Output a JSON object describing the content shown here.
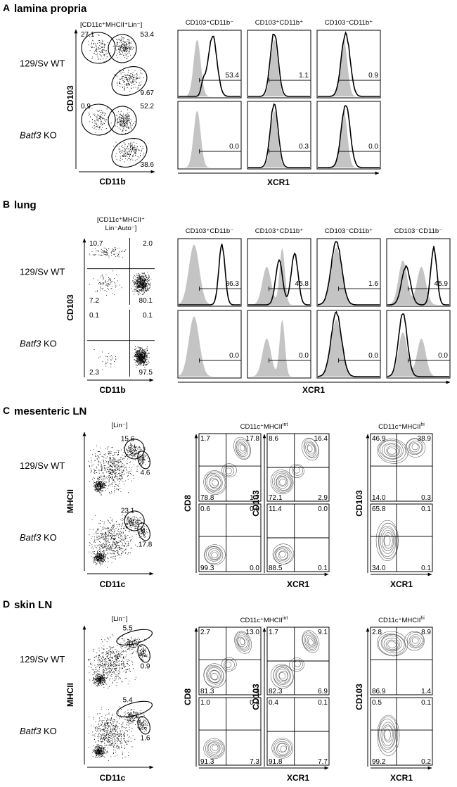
{
  "figure": {
    "panels": [
      {
        "letter": "A",
        "title": "lamina propria",
        "type": "histogram_grid",
        "gate_label": "[CD11c⁺MHCII⁺Lin⁻]",
        "dot_xlabel": "CD11b",
        "dot_ylabel": "CD103",
        "hist_xlabel": "XCR1",
        "rows": [
          "129/Sv WT",
          "Batf3 KO"
        ],
        "columns": [
          "CD103⁺CD11b⁻",
          "CD103⁺CD11b⁺",
          "CD103⁻CD11b⁺"
        ],
        "dot_values": [
          [
            "27.1",
            "53.4",
            "9.67"
          ],
          [
            "0.9",
            "52.2",
            "38.6"
          ]
        ],
        "hist_values": [
          [
            "53.4",
            "1.1",
            "0.9"
          ],
          [
            "0.0",
            "0.3",
            "0.0"
          ]
        ]
      },
      {
        "letter": "B",
        "title": "lung",
        "type": "histogram_grid",
        "gate_label": [
          "[CD11c⁺MHCII⁺",
          "Lin⁻Auto⁻]"
        ],
        "dot_xlabel": "CD11b",
        "dot_ylabel": "CD103",
        "hist_xlabel": "XCR1",
        "rows": [
          "129/Sv WT",
          "Batf3 KO"
        ],
        "columns": [
          "CD103⁺CD11b⁻",
          "CD103⁺CD11b⁺",
          "CD103⁻CD11b⁺",
          "CD103⁻CD11b⁻"
        ],
        "dot_values": [
          [
            "10.7",
            "2.0",
            "7.2",
            "80.1"
          ],
          [
            "0.1",
            "0.1",
            "2.3",
            "97.5"
          ]
        ],
        "hist_values": [
          [
            "86.3",
            "45.8",
            "1.6",
            "45.9"
          ],
          [
            "0.0",
            "0.0",
            "0.0",
            "0.0"
          ]
        ]
      },
      {
        "letter": "C",
        "title": "mesenteric LN",
        "type": "contour_grid",
        "gate_label": "[Lin⁻]",
        "dot_xlabel": "CD11c",
        "dot_ylabel": "MHCII",
        "rows": [
          "129/Sv WT",
          "Batf3 KO"
        ],
        "group_titles": [
          "CD11c⁺MHCII^int",
          "CD11c⁺MHCII^hi"
        ],
        "contour_ylabels": [
          "CD8",
          "CD103",
          "CD103"
        ],
        "contour_xlabel": "XCR1",
        "dot_values": [
          [
            "15.6",
            "4.6"
          ],
          [
            "23.1",
            "17.8"
          ]
        ],
        "quadrants": [
          [
            [
              "1.7",
              "17.8",
              "78.8",
              "1.7"
            ],
            [
              "8.6",
              "16.4",
              "72.1",
              "2.9"
            ],
            [
              "46.9",
              "38.9",
              "14.0",
              "0.3"
            ]
          ],
          [
            [
              "0.6",
              "0.0",
              "99.3",
              "0.0"
            ],
            [
              "11.4",
              "0.0",
              "88.5",
              "0.1"
            ],
            [
              "65.8",
              "0.1",
              "34.0",
              "0.1"
            ]
          ]
        ]
      },
      {
        "letter": "D",
        "title": "skin LN",
        "type": "contour_grid",
        "gate_label": "[Lin⁻]",
        "dot_xlabel": "CD11c",
        "dot_ylabel": "MHCII",
        "rows": [
          "129/Sv WT",
          "Batf3 KO"
        ],
        "group_titles": [
          "CD11c⁺MHCII^int",
          "CD11c⁺MHCII^hi"
        ],
        "contour_ylabels": [
          "CD8",
          "CD103",
          "CD103"
        ],
        "contour_xlabel": "XCR1",
        "dot_values": [
          [
            "5.5",
            "0.9"
          ],
          [
            "5.4",
            "1.6"
          ]
        ],
        "quadrants": [
          [
            [
              "2.7",
              "13.0",
              "81.3",
              "3"
            ],
            [
              "1.7",
              "9.1",
              "82.3",
              "6.9"
            ],
            [
              "2.8",
              "8.9",
              "86.9",
              "1.4"
            ]
          ],
          [
            [
              "1.0",
              "0.4",
              "91.3",
              "7.3"
            ],
            [
              "0.4",
              "0.1",
              "91.8",
              "7.7"
            ],
            [
              "0.5",
              "0.1",
              "99.2",
              "0.2"
            ]
          ]
        ]
      }
    ]
  }
}
